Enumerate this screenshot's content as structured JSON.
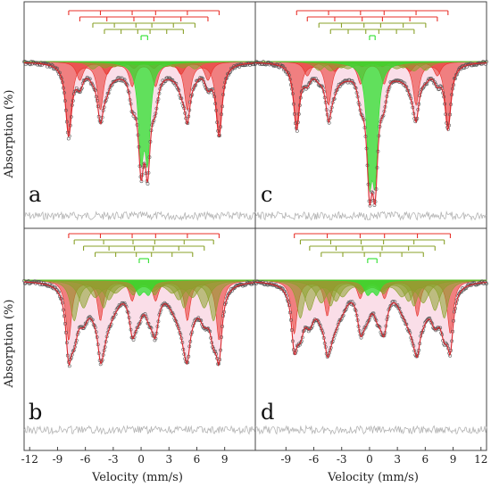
{
  "chart_data": {
    "type": "line",
    "x_axis_label": "Velocity (mm/s)",
    "y_axis_label": "Absorption (%)",
    "left_ticks": [
      -12,
      -9,
      -6,
      -3,
      0,
      3,
      6,
      9
    ],
    "right_ticks": [
      -9,
      -6,
      -3,
      0,
      3,
      6,
      9,
      12
    ],
    "left_xlim": [
      -12.6,
      12.3
    ],
    "right_xlim": [
      -12.3,
      12.6
    ],
    "colors": {
      "sextet_red": "#e8312a",
      "sextet_olive": "#8aa12a",
      "doublet_green": "#2ee02e",
      "fit_line": "#d9262c",
      "data_points": "#555555",
      "residual": "#b4b4b4",
      "fill_pink": "#f7c8d8"
    },
    "panels": [
      {
        "label": "a",
        "position": "top-left",
        "components": [
          {
            "type": "sextet",
            "color": "red",
            "center": 0.3,
            "split": 16.2,
            "depth": 0.5,
            "width": 0.8
          },
          {
            "type": "sextet",
            "color": "red",
            "center": 0.3,
            "split": 13.8,
            "depth": 0.13,
            "width": 0.9
          },
          {
            "type": "sextet",
            "color": "olive",
            "center": 0.3,
            "split": 11.0,
            "depth": 0.05,
            "width": 1.2
          },
          {
            "type": "sextet",
            "color": "olive",
            "center": 0.3,
            "split": 8.5,
            "depth": 0.04,
            "width": 1.4
          },
          {
            "type": "doublet",
            "color": "green",
            "center": 0.35,
            "split": 0.7,
            "depth": 0.62,
            "width": 0.7
          }
        ]
      },
      {
        "label": "c",
        "position": "top-right",
        "components": [
          {
            "type": "sextet",
            "color": "red",
            "center": 0.3,
            "split": 16.3,
            "depth": 0.45,
            "width": 0.8
          },
          {
            "type": "sextet",
            "color": "red",
            "center": 0.3,
            "split": 14.0,
            "depth": 0.1,
            "width": 0.9
          },
          {
            "type": "sextet",
            "color": "olive",
            "center": 0.3,
            "split": 11.5,
            "depth": 0.06,
            "width": 1.2
          },
          {
            "type": "sextet",
            "color": "olive",
            "center": 0.3,
            "split": 9.0,
            "depth": 0.06,
            "width": 1.4
          },
          {
            "type": "doublet",
            "color": "green",
            "center": 0.3,
            "split": 0.6,
            "depth": 0.72,
            "width": 0.7
          }
        ]
      },
      {
        "label": "b",
        "position": "bottom-left",
        "components": [
          {
            "type": "sextet",
            "color": "red",
            "center": 0.3,
            "split": 16.2,
            "depth": 0.45,
            "width": 0.75
          },
          {
            "type": "sextet",
            "color": "olive",
            "center": 0.3,
            "split": 15.0,
            "depth": 0.3,
            "width": 1.0
          },
          {
            "type": "sextet",
            "color": "olive",
            "center": 0.3,
            "split": 13.0,
            "depth": 0.2,
            "width": 1.3
          },
          {
            "type": "sextet",
            "color": "olive",
            "center": 0.3,
            "split": 10.5,
            "depth": 0.12,
            "width": 1.5
          },
          {
            "type": "doublet",
            "color": "green",
            "center": 0.3,
            "split": 1.0,
            "depth": 0.1,
            "width": 0.9
          }
        ]
      },
      {
        "label": "d",
        "position": "bottom-right",
        "components": [
          {
            "type": "sextet",
            "color": "red",
            "center": 0.3,
            "split": 16.8,
            "depth": 0.4,
            "width": 0.75
          },
          {
            "type": "sextet",
            "color": "olive",
            "center": 0.3,
            "split": 15.5,
            "depth": 0.28,
            "width": 1.0
          },
          {
            "type": "sextet",
            "color": "olive",
            "center": 0.3,
            "split": 13.5,
            "depth": 0.22,
            "width": 1.2
          },
          {
            "type": "sextet",
            "color": "olive",
            "center": 0.3,
            "split": 11.0,
            "depth": 0.16,
            "width": 1.4
          },
          {
            "type": "doublet",
            "color": "green",
            "center": 0.3,
            "split": 1.0,
            "depth": 0.1,
            "width": 0.9
          }
        ]
      }
    ]
  }
}
